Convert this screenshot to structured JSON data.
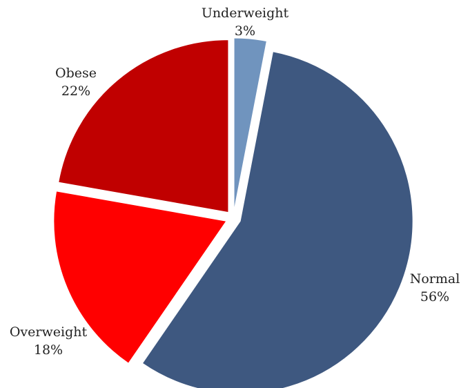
{
  "chart_data": {
    "type": "pie",
    "title": "",
    "legend": "none",
    "exploded": true,
    "slices": [
      {
        "label": "Underweight",
        "value": 3,
        "value_label": "3%",
        "color": "#7094BE"
      },
      {
        "label": "Normal",
        "value": 56,
        "value_label": "56%",
        "color": "#3E5880"
      },
      {
        "label": "Overweight",
        "value": 18,
        "value_label": "18%",
        "color": "#FF0000"
      },
      {
        "label": "Obese",
        "value": 22,
        "value_label": "22%",
        "color": "#C00000"
      }
    ]
  }
}
